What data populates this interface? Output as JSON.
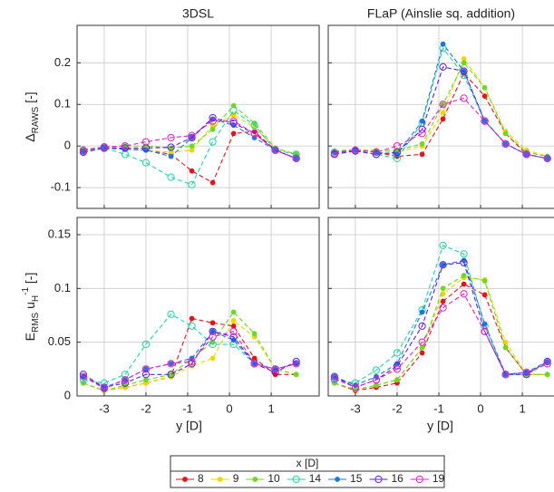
{
  "chart_data": [
    {
      "type": "line",
      "title": "3DSL",
      "ylabel": [
        {
          "text": "Δ"
        },
        {
          "text": "RAWS",
          "shift": "sub"
        },
        {
          "text": " [-]"
        }
      ],
      "x": [
        -3.5,
        -3,
        -2.5,
        -2,
        -1.4,
        -0.9,
        -0.4,
        0.1,
        0.6,
        1.1,
        1.6
      ],
      "xlim": [
        -3.65,
        2.15
      ],
      "xticks": [
        -3,
        -2,
        -1,
        0,
        1
      ],
      "xtick_labels": false,
      "ylim": [
        -0.15,
        0.29
      ],
      "yticks": [
        -0.1,
        0,
        0.1,
        0.2
      ],
      "ytick_labels": true,
      "grid": true,
      "linestyle": "dashed",
      "series": [
        {
          "name": "8",
          "color": "#e3141e",
          "marker": "filled",
          "values": [
            -0.01,
            -0.005,
            -0.005,
            -0.01,
            -0.02,
            -0.06,
            -0.088,
            0.03,
            0.035,
            -0.01,
            -0.03
          ]
        },
        {
          "name": "9",
          "color": "#f2d500",
          "marker": "filled",
          "values": [
            -0.008,
            -0.005,
            -0.005,
            -0.01,
            -0.015,
            -0.01,
            0.05,
            0.075,
            0.045,
            -0.005,
            -0.02
          ]
        },
        {
          "name": "10",
          "color": "#6fd824",
          "marker": "filled",
          "values": [
            -0.008,
            -0.003,
            0.0,
            0.0,
            -0.005,
            0.0,
            0.04,
            0.097,
            0.055,
            -0.005,
            -0.02
          ]
        },
        {
          "name": "14",
          "color": "#22d4a4",
          "marker": "open",
          "values": [
            -0.01,
            -0.005,
            -0.02,
            -0.04,
            -0.075,
            -0.093,
            0.01,
            0.085,
            0.05,
            -0.01,
            -0.02
          ]
        },
        {
          "name": "15",
          "color": "#1c78e0",
          "marker": "filled",
          "values": [
            -0.015,
            -0.005,
            -0.008,
            -0.01,
            -0.025,
            0.02,
            0.065,
            0.05,
            0.02,
            -0.01,
            -0.03
          ]
        },
        {
          "name": "16",
          "color": "#5a22d8",
          "marker": "open",
          "values": [
            -0.015,
            -0.005,
            -0.005,
            -0.005,
            -0.003,
            0.02,
            0.068,
            0.055,
            0.03,
            -0.01,
            -0.03
          ]
        },
        {
          "name": "19",
          "color": "#e022c8",
          "marker": "open",
          "values": [
            -0.01,
            -0.002,
            0.0,
            0.01,
            0.02,
            0.025,
            0.06,
            0.06,
            0.03,
            -0.01,
            -0.03
          ]
        }
      ]
    },
    {
      "type": "line",
      "title": "FLaP (Ainslie sq. addition)",
      "x": [
        -3.5,
        -3,
        -2.5,
        -2,
        -1.4,
        -0.9,
        -0.4,
        0.1,
        0.6,
        1.1,
        1.6
      ],
      "xlim": [
        -3.65,
        2.15
      ],
      "xticks": [
        -3,
        -2,
        -1,
        0,
        1
      ],
      "xtick_labels": false,
      "ylim": [
        -0.15,
        0.29
      ],
      "yticks": [
        -0.1,
        0,
        0.1,
        0.2
      ],
      "ytick_labels": false,
      "grid": true,
      "linestyle": "dashed",
      "series": [
        {
          "name": "8",
          "color": "#e3141e",
          "marker": "filled",
          "values": [
            -0.015,
            -0.01,
            -0.015,
            -0.025,
            -0.02,
            0.065,
            0.175,
            0.12,
            0.03,
            -0.02,
            -0.03
          ]
        },
        {
          "name": "9",
          "color": "#f2d500",
          "marker": "filled",
          "values": [
            -0.012,
            -0.008,
            -0.01,
            -0.015,
            0.0,
            0.08,
            0.21,
            0.14,
            0.035,
            -0.01,
            -0.025
          ]
        },
        {
          "name": "10",
          "color": "#6fd824",
          "marker": "filled",
          "values": [
            -0.012,
            -0.01,
            -0.012,
            -0.01,
            0.005,
            0.1,
            0.2,
            0.14,
            0.03,
            -0.015,
            -0.025
          ]
        },
        {
          "name": "14",
          "color": "#22d4a4",
          "marker": "open",
          "values": [
            -0.015,
            -0.012,
            -0.02,
            -0.03,
            0.055,
            0.235,
            0.17,
            0.06,
            0.005,
            -0.02,
            -0.03
          ]
        },
        {
          "name": "15",
          "color": "#1c78e0",
          "marker": "filled",
          "values": [
            -0.015,
            -0.01,
            -0.015,
            -0.02,
            0.06,
            0.245,
            0.18,
            0.06,
            0.005,
            -0.02,
            -0.03
          ]
        },
        {
          "name": "16",
          "color": "#5a22d8",
          "marker": "open",
          "values": [
            -0.02,
            -0.012,
            -0.02,
            -0.015,
            0.04,
            0.19,
            0.18,
            0.06,
            0.005,
            -0.02,
            -0.03
          ]
        },
        {
          "name": "19",
          "color": "#e022c8",
          "marker": "open",
          "values": [
            -0.018,
            -0.01,
            -0.015,
            0.0,
            0.03,
            0.1,
            0.115,
            0.06,
            0.005,
            -0.02,
            -0.03
          ]
        }
      ]
    },
    {
      "type": "line",
      "xlabel": "y [D]",
      "ylabel": [
        {
          "text": "E"
        },
        {
          "text": "RMS",
          "shift": "sub"
        },
        {
          "text": " u"
        },
        {
          "text": "H",
          "shift": "sub"
        },
        {
          "text": "-1",
          "shift": "super"
        },
        {
          "text": " [-]"
        }
      ],
      "x": [
        -3.5,
        -3,
        -2.5,
        -2,
        -1.4,
        -0.9,
        -0.4,
        0.1,
        0.6,
        1.1,
        1.6
      ],
      "xlim": [
        -3.65,
        2.15
      ],
      "xticks": [
        -3,
        -2,
        -1,
        0,
        1
      ],
      "xtick_labels": true,
      "ylim": [
        0,
        0.166
      ],
      "yticks": [
        0,
        0.05,
        0.1,
        0.15
      ],
      "ytick_labels": true,
      "grid": true,
      "linestyle": "dashed",
      "series": [
        {
          "name": "8",
          "color": "#e3141e",
          "marker": "filled",
          "values": [
            0.012,
            0.005,
            0.008,
            0.012,
            0.018,
            0.072,
            0.068,
            0.065,
            0.035,
            0.02,
            0.02
          ]
        },
        {
          "name": "9",
          "color": "#f2d500",
          "marker": "filled",
          "values": [
            0.012,
            0.005,
            0.008,
            0.012,
            0.018,
            0.028,
            0.035,
            0.07,
            0.055,
            0.025,
            0.02
          ]
        },
        {
          "name": "10",
          "color": "#6fd824",
          "marker": "filled",
          "values": [
            0.012,
            0.005,
            0.01,
            0.015,
            0.02,
            0.035,
            0.05,
            0.078,
            0.058,
            0.025,
            0.02
          ]
        },
        {
          "name": "14",
          "color": "#22d4a4",
          "marker": "open",
          "values": [
            0.015,
            0.012,
            0.02,
            0.048,
            0.076,
            0.065,
            0.048,
            0.048,
            0.03,
            0.025,
            0.03
          ]
        },
        {
          "name": "15",
          "color": "#1c78e0",
          "marker": "filled",
          "values": [
            0.018,
            0.008,
            0.015,
            0.025,
            0.03,
            0.035,
            0.06,
            0.052,
            0.03,
            0.025,
            0.03
          ]
        },
        {
          "name": "16",
          "color": "#5a22d8",
          "marker": "open",
          "values": [
            0.02,
            0.008,
            0.012,
            0.02,
            0.02,
            0.03,
            0.06,
            0.055,
            0.03,
            0.022,
            0.032
          ]
        },
        {
          "name": "19",
          "color": "#e022c8",
          "marker": "open",
          "values": [
            0.018,
            0.007,
            0.015,
            0.025,
            0.03,
            0.032,
            0.055,
            0.06,
            0.03,
            0.025,
            0.03
          ]
        }
      ]
    },
    {
      "type": "line",
      "xlabel": "y [D]",
      "x": [
        -3.5,
        -3,
        -2.5,
        -2,
        -1.4,
        -0.9,
        -0.4,
        0.1,
        0.6,
        1.1,
        1.6
      ],
      "xlim": [
        -3.65,
        2.15
      ],
      "xticks": [
        -3,
        -2,
        -1,
        0,
        1
      ],
      "xtick_labels": true,
      "ylim": [
        0,
        0.166
      ],
      "yticks": [
        0,
        0.05,
        0.1,
        0.15
      ],
      "ytick_labels": false,
      "grid": true,
      "linestyle": "dashed",
      "series": [
        {
          "name": "8",
          "color": "#e3141e",
          "marker": "filled",
          "values": [
            0.012,
            0.005,
            0.008,
            0.012,
            0.04,
            0.088,
            0.104,
            0.094,
            0.045,
            0.02,
            0.02
          ]
        },
        {
          "name": "9",
          "color": "#f2d500",
          "marker": "filled",
          "values": [
            0.012,
            0.006,
            0.01,
            0.015,
            0.045,
            0.095,
            0.11,
            0.108,
            0.05,
            0.02,
            0.02
          ]
        },
        {
          "name": "10",
          "color": "#6fd824",
          "marker": "filled",
          "values": [
            0.012,
            0.006,
            0.01,
            0.015,
            0.045,
            0.1,
            0.112,
            0.107,
            0.045,
            0.02,
            0.02
          ]
        },
        {
          "name": "14",
          "color": "#22d4a4",
          "marker": "open",
          "values": [
            0.015,
            0.012,
            0.024,
            0.04,
            0.08,
            0.14,
            0.132,
            0.065,
            0.02,
            0.02,
            0.03
          ]
        },
        {
          "name": "15",
          "color": "#1c78e0",
          "marker": "filled",
          "values": [
            0.018,
            0.01,
            0.018,
            0.03,
            0.078,
            0.122,
            0.126,
            0.067,
            0.02,
            0.022,
            0.032
          ]
        },
        {
          "name": "16",
          "color": "#5a22d8",
          "marker": "open",
          "values": [
            0.018,
            0.008,
            0.015,
            0.028,
            0.065,
            0.122,
            0.124,
            0.06,
            0.02,
            0.02,
            0.032
          ]
        },
        {
          "name": "19",
          "color": "#e022c8",
          "marker": "open",
          "values": [
            0.016,
            0.008,
            0.015,
            0.025,
            0.05,
            0.082,
            0.095,
            0.06,
            0.02,
            0.022,
            0.03
          ]
        }
      ]
    }
  ],
  "legend": {
    "title": "x [D]"
  }
}
